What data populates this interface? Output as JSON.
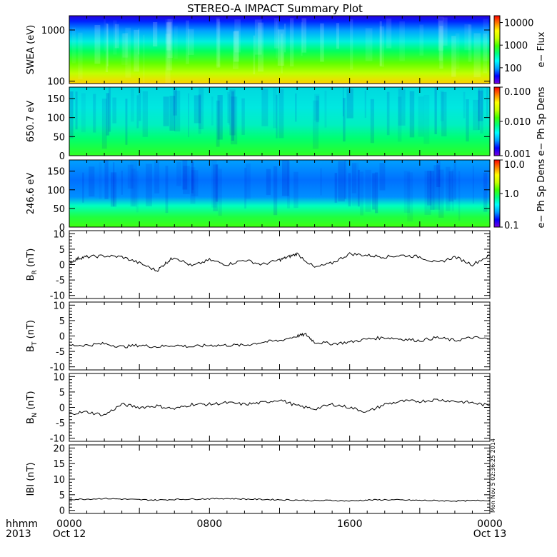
{
  "title": "STEREO-A IMPACT Summary Plot",
  "colors": {
    "line": "#000000",
    "frame": "#000000",
    "spectrogram_scale": [
      "#7a00e0",
      "#0000ff",
      "#00a0ff",
      "#00ffff",
      "#00ff80",
      "#40ff00",
      "#c8ff00",
      "#ffff00",
      "#ff8000",
      "#ff0000"
    ]
  },
  "chart_data": [
    {
      "type": "heatmap",
      "ylabel": "SWEA (eV)",
      "yscale": "log",
      "yticks": [
        "1000",
        "100"
      ],
      "ylim": [
        90,
        1900
      ],
      "colorbar_label": "e− Flux",
      "colorbar_ticks": [
        "10000",
        "1000",
        "100"
      ],
      "colorbar_scale": "log",
      "colorbar_range": [
        20,
        20000
      ],
      "description_levels": "flux highest near 100 eV (yellow), falling to lowest near 1900 eV (blue/purple)"
    },
    {
      "type": "heatmap",
      "ylabel": "650.7 eV",
      "yticks": [
        "150",
        "100",
        "50",
        "0"
      ],
      "ylim": [
        0,
        180
      ],
      "colorbar_label": "e− Ph Sp Dens",
      "colorbar_ticks": [
        "0.100",
        "0.010",
        "0.001"
      ],
      "colorbar_scale": "log",
      "colorbar_range": [
        0.001,
        0.1
      ]
    },
    {
      "type": "heatmap",
      "ylabel": "246.6 eV",
      "yticks": [
        "150",
        "100",
        "50",
        "0"
      ],
      "ylim": [
        0,
        180
      ],
      "colorbar_label": "e− Ph Sp Dens",
      "colorbar_ticks": [
        "10.0",
        "1.0",
        "0.1"
      ],
      "colorbar_scale": "log",
      "colorbar_range": [
        0.1,
        10
      ]
    },
    {
      "type": "line",
      "ylabel": "B",
      "ylabel_sub": "R",
      "ylabel_unit": "(nT)",
      "yticks": [
        "10",
        "5",
        "0",
        "-5",
        "-10"
      ],
      "ylim": [
        -11,
        11
      ],
      "x_hours": [
        0.0,
        0.5,
        1.0,
        2.0,
        3.0,
        4.0,
        5.0,
        5.5,
        6.0,
        7.0,
        8.0,
        9.0,
        10.0,
        11.0,
        12.0,
        12.5,
        13.0,
        14.0,
        15.0,
        16.0,
        17.0,
        18.0,
        19.0,
        20.0,
        21.0,
        22.0,
        23.0,
        24.0
      ],
      "values": [
        0.5,
        2.0,
        2.5,
        2.8,
        2.5,
        0.5,
        -2.0,
        0.5,
        2.5,
        -0.5,
        1.5,
        0.0,
        1.5,
        0.0,
        1.5,
        2.5,
        3.5,
        -1.0,
        0.5,
        3.5,
        3.0,
        2.5,
        3.0,
        2.5,
        0.5,
        2.5,
        0.0,
        3.0
      ]
    },
    {
      "type": "line",
      "ylabel": "B",
      "ylabel_sub": "T",
      "ylabel_unit": "(nT)",
      "yticks": [
        "10",
        "5",
        "0",
        "-5",
        "-10"
      ],
      "ylim": [
        -11,
        11
      ],
      "x_hours": [
        0.0,
        1.0,
        2.0,
        3.0,
        4.0,
        5.0,
        6.0,
        7.0,
        8.0,
        9.0,
        10.0,
        11.0,
        12.0,
        13.0,
        13.5,
        14.0,
        15.0,
        16.0,
        17.0,
        18.0,
        19.0,
        20.0,
        21.0,
        22.0,
        23.0,
        24.0
      ],
      "values": [
        -3.0,
        -3.0,
        -2.5,
        -3.5,
        -3.0,
        -3.5,
        -3.0,
        -3.5,
        -3.0,
        -3.0,
        -3.0,
        -2.0,
        -1.5,
        0.0,
        0.5,
        -2.0,
        -2.5,
        -2.0,
        -1.0,
        -0.5,
        -1.0,
        -1.5,
        -0.5,
        -1.5,
        -0.5,
        -1.0
      ]
    },
    {
      "type": "line",
      "ylabel": "B",
      "ylabel_sub": "N",
      "ylabel_unit": "(nT)",
      "yticks": [
        "10",
        "5",
        "0",
        "-5",
        "-10"
      ],
      "ylim": [
        -11,
        11
      ],
      "x_hours": [
        0.0,
        1.0,
        2.0,
        3.0,
        4.0,
        5.0,
        6.0,
        7.0,
        8.0,
        9.0,
        10.0,
        11.0,
        12.0,
        13.0,
        14.0,
        15.0,
        16.0,
        17.0,
        18.0,
        19.0,
        20.0,
        21.0,
        22.0,
        23.0,
        24.0
      ],
      "values": [
        -2.0,
        -1.5,
        -2.5,
        1.0,
        0.0,
        0.5,
        -0.5,
        1.0,
        1.0,
        1.5,
        1.0,
        1.5,
        2.5,
        0.5,
        -0.5,
        1.0,
        0.0,
        -1.5,
        1.0,
        2.0,
        2.0,
        2.5,
        2.0,
        1.5,
        0.5
      ]
    },
    {
      "type": "line",
      "ylabel": "IBI",
      "ylabel_unit": "(nT)",
      "yticks": [
        "20",
        "15",
        "10",
        "5",
        "0"
      ],
      "ylim": [
        -1,
        21
      ],
      "x_hours": [
        0.0,
        1.0,
        2.0,
        3.0,
        4.0,
        5.0,
        6.0,
        7.0,
        8.0,
        9.0,
        10.0,
        11.0,
        12.0,
        13.0,
        14.0,
        15.0,
        16.0,
        17.0,
        18.0,
        19.0,
        20.0,
        21.0,
        22.0,
        23.0,
        24.0
      ],
      "values": [
        3.5,
        3.6,
        3.8,
        3.6,
        3.4,
        3.3,
        3.5,
        3.6,
        3.7,
        3.8,
        3.6,
        3.5,
        3.4,
        3.3,
        3.1,
        3.2,
        3.0,
        3.3,
        3.4,
        3.3,
        3.2,
        3.1,
        3.0,
        3.1,
        3.2
      ],
      "side_note": "Mon Nov  5 02:36:25 2014"
    }
  ],
  "x_axis": {
    "ticks": [
      {
        "label": "0000",
        "sub": "Oct 12",
        "hours": 0
      },
      {
        "label": "0800",
        "sub": "",
        "hours": 8
      },
      {
        "label": "1600",
        "sub": "",
        "hours": 16
      },
      {
        "label": "0000",
        "sub": "Oct 13",
        "hours": 24
      }
    ],
    "corner_label_top": "hhmm",
    "corner_label_bottom": "2013"
  }
}
